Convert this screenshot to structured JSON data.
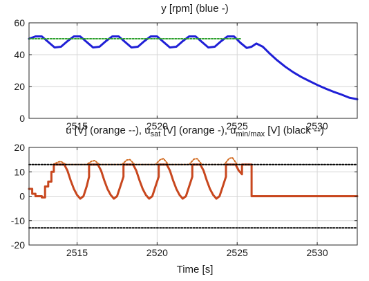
{
  "chart_data": [
    {
      "type": "line",
      "title": "y [rpm] (blue -)",
      "xlabel": "",
      "ylabel": "",
      "xlim": [
        2512,
        2532.5
      ],
      "ylim": [
        0,
        60
      ],
      "xticks": [
        2515,
        2520,
        2525,
        2530
      ],
      "yticks": [
        0,
        20,
        40,
        60
      ],
      "grid": true,
      "series": [
        {
          "color": "#1f1fd6",
          "style": "solid",
          "x": [
            2512.0,
            2512.4,
            2512.8,
            2513.2,
            2513.6,
            2514.0,
            2514.4,
            2514.8,
            2515.2,
            2515.6,
            2516.0,
            2516.4,
            2516.8,
            2517.2,
            2517.6,
            2518.0,
            2518.4,
            2518.8,
            2519.2,
            2519.6,
            2520.0,
            2520.4,
            2520.8,
            2521.2,
            2521.6,
            2522.0,
            2522.4,
            2522.8,
            2523.2,
            2523.6,
            2524.0,
            2524.4,
            2524.8,
            2525.2,
            2525.6,
            2525.9,
            2526.2,
            2526.6,
            2527.0,
            2527.5,
            2528.0,
            2528.5,
            2529.0,
            2529.5,
            2530.0,
            2530.5,
            2531.0,
            2531.5,
            2532.0,
            2532.5
          ],
          "y": [
            50,
            51.5,
            51.5,
            48,
            44.5,
            45,
            48.5,
            51.5,
            51.5,
            48,
            44.5,
            45,
            48.5,
            51.5,
            51.5,
            48,
            44.5,
            45,
            48.5,
            51.5,
            51.5,
            48,
            44.5,
            45,
            48.5,
            51.5,
            51.5,
            48,
            44.5,
            45,
            48.5,
            51.5,
            51.5,
            47.5,
            44.2,
            45,
            47,
            45,
            41,
            36.5,
            32.5,
            29,
            26,
            23.5,
            21,
            18.8,
            16.8,
            15,
            13,
            12
          ]
        },
        {
          "color": "#2ca02c",
          "style": "dotted",
          "x": [
            2512.0,
            2525.2
          ],
          "y": [
            50,
            50
          ]
        }
      ]
    },
    {
      "type": "line",
      "title": "u [V] (orange --), u",
      "title_parts": [
        {
          "text": "u [V] (orange --), u"
        },
        {
          "text": "sat",
          "sub": true
        },
        {
          "text": " [V] (orange -), u"
        },
        {
          "text": "min/max",
          "sub": true
        },
        {
          "text": " [V] (black --)"
        }
      ],
      "xlabel": "Time [s]",
      "ylabel": "",
      "xlim": [
        2512,
        2532.5
      ],
      "ylim": [
        -20,
        20
      ],
      "xticks": [
        2515,
        2520,
        2525,
        2530
      ],
      "yticks": [
        -20,
        -10,
        0,
        10,
        20
      ],
      "grid": true,
      "series": [
        {
          "color": "#d2691e",
          "style": "dotted",
          "x": [
            2513.5,
            2513.8,
            2514.0,
            2514.3,
            2515.6,
            2515.9,
            2516.1,
            2516.4,
            2517.8,
            2518.1,
            2518.3,
            2518.6,
            2519.9,
            2520.2,
            2520.4,
            2520.7,
            2522.0,
            2522.3,
            2522.5,
            2522.8,
            2524.2,
            2524.5,
            2524.7,
            2525.0,
            2525.3,
            2525.6,
            2525.9
          ],
          "y": [
            13,
            14,
            14.2,
            13,
            13,
            14.3,
            14.6,
            13,
            13,
            14.8,
            15,
            13,
            13,
            15,
            15.4,
            13,
            13,
            15.2,
            15.4,
            13,
            13,
            15.5,
            15.8,
            13,
            13,
            13,
            13
          ]
        },
        {
          "color": "#c8471e",
          "style": "solid",
          "x": [
            2512.0,
            2512.2,
            2512.2,
            2512.4,
            2512.4,
            2512.8,
            2512.8,
            2513.0,
            2513.0,
            2513.2,
            2513.2,
            2513.4,
            2513.4,
            2513.55,
            2513.55,
            2514.2,
            2514.4,
            2514.6,
            2514.8,
            2515.0,
            2515.2,
            2515.4,
            2515.6,
            2515.75,
            2515.75,
            2516.3,
            2516.5,
            2516.7,
            2516.9,
            2517.1,
            2517.3,
            2517.5,
            2517.7,
            2517.9,
            2517.9,
            2518.5,
            2518.7,
            2518.9,
            2519.1,
            2519.3,
            2519.5,
            2519.7,
            2519.9,
            2520.1,
            2520.1,
            2520.6,
            2520.8,
            2521.0,
            2521.2,
            2521.4,
            2521.6,
            2521.8,
            2522.0,
            2522.2,
            2522.2,
            2522.7,
            2522.9,
            2523.1,
            2523.3,
            2523.5,
            2523.7,
            2523.9,
            2524.1,
            2524.3,
            2524.3,
            2524.9,
            2525.1,
            2525.3,
            2525.3,
            2525.8,
            2525.8,
            2525.9,
            2525.9,
            2532.5
          ],
          "y": [
            3,
            3,
            1,
            1,
            0,
            0,
            -0.5,
            -0.5,
            4,
            4,
            6,
            6,
            10,
            10,
            13,
            13,
            10.5,
            6.5,
            3,
            0.5,
            -1,
            0,
            4,
            8,
            13,
            13,
            10.5,
            6.5,
            3,
            0.5,
            -1,
            0,
            4,
            8,
            13,
            13,
            10.5,
            6.5,
            3,
            0.5,
            -1,
            0,
            4,
            8,
            13,
            13,
            10.5,
            6.5,
            3,
            0.5,
            -1,
            0,
            4,
            8,
            13,
            13,
            10.5,
            6.5,
            3,
            0.5,
            -1,
            0,
            4,
            8,
            13,
            13,
            10.5,
            9,
            13,
            13,
            13,
            13,
            0,
            0
          ]
        },
        {
          "color": "#000000",
          "style": "dotted",
          "x": [
            2512.0,
            2532.5
          ],
          "y": [
            13,
            13
          ]
        },
        {
          "color": "#000000",
          "style": "dotted",
          "x": [
            2512.0,
            2532.5
          ],
          "y": [
            -13,
            -13
          ]
        }
      ]
    }
  ]
}
